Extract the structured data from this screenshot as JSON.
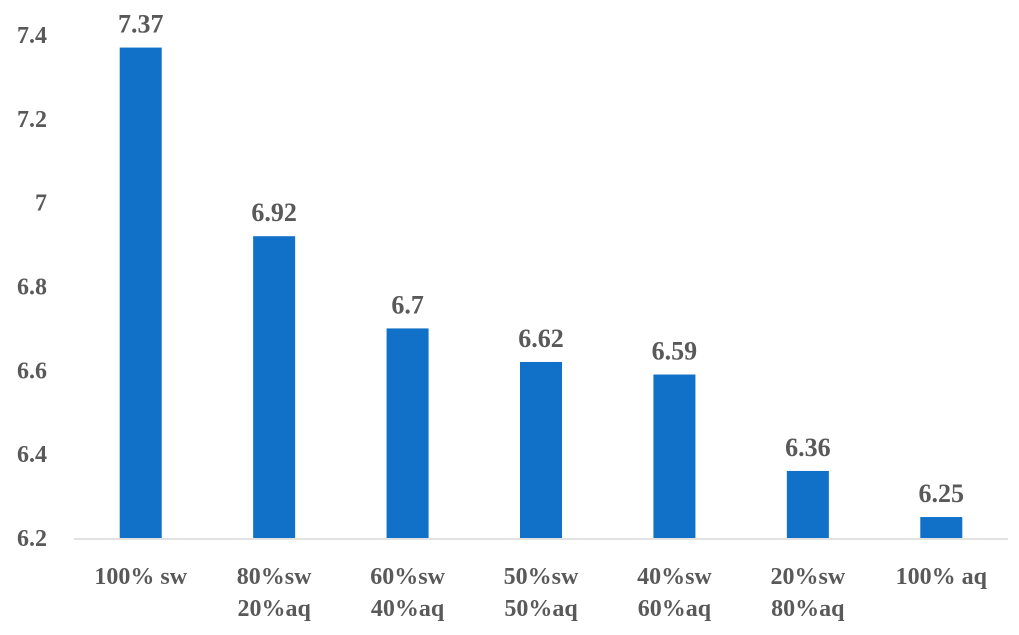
{
  "chart_data": {
    "type": "bar",
    "categories": [
      [
        "100% sw"
      ],
      [
        "80%sw",
        "20%aq"
      ],
      [
        "60%sw",
        "40%aq"
      ],
      [
        "50%sw",
        "50%aq"
      ],
      [
        "40%sw",
        "60%aq"
      ],
      [
        "20%sw",
        "80%aq"
      ],
      [
        "100% aq"
      ]
    ],
    "values": [
      7.37,
      6.92,
      6.7,
      6.62,
      6.59,
      6.36,
      6.25
    ],
    "value_labels": [
      "7.37",
      "6.92",
      "6.7",
      "6.62",
      "6.59",
      "6.36",
      "6.25"
    ],
    "yticks": [
      "6.2",
      "6.4",
      "6.6",
      "6.8",
      "7",
      "7.2",
      "7.4"
    ],
    "ylim": [
      6.2,
      7.4
    ],
    "grid": false,
    "legend": "none",
    "bar_color": "#1170C8",
    "axis_color": "#D9D9D9"
  }
}
